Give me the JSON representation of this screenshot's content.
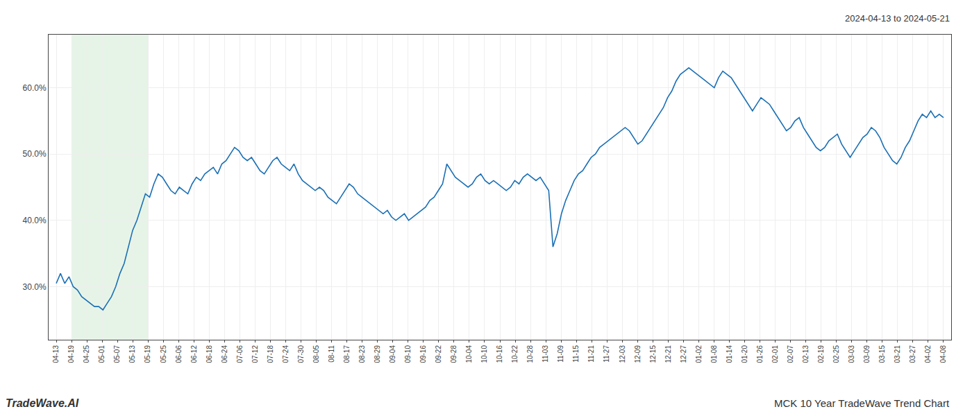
{
  "chart_data": {
    "type": "line",
    "title": "MCK 10 Year TradeWave Trend Chart",
    "subtitle": "2024-04-13 to 2024-05-21",
    "annotations": [
      "TradeWave.AI"
    ],
    "color": "#1a6fb5",
    "grid": true,
    "highlight": {
      "x": [
        1,
        6
      ],
      "color": "#c8e6c9"
    },
    "xlim": [
      -0.5,
      58.5
    ],
    "xticks": [
      {
        "value": 0,
        "label": "04-13"
      },
      {
        "value": 1,
        "label": "04-19"
      },
      {
        "value": 2,
        "label": "04-25"
      },
      {
        "value": 3,
        "label": "05-01"
      },
      {
        "value": 4,
        "label": "05-07"
      },
      {
        "value": 5,
        "label": "05-13"
      },
      {
        "value": 6,
        "label": "05-19"
      },
      {
        "value": 7,
        "label": "05-25"
      },
      {
        "value": 8,
        "label": "06-06"
      },
      {
        "value": 9,
        "label": "06-12"
      },
      {
        "value": 10,
        "label": "06-18"
      },
      {
        "value": 11,
        "label": "06-24"
      },
      {
        "value": 12,
        "label": "07-06"
      },
      {
        "value": 13,
        "label": "07-12"
      },
      {
        "value": 14,
        "label": "07-18"
      },
      {
        "value": 15,
        "label": "07-24"
      },
      {
        "value": 16,
        "label": "07-30"
      },
      {
        "value": 17,
        "label": "08-05"
      },
      {
        "value": 18,
        "label": "08-11"
      },
      {
        "value": 19,
        "label": "08-17"
      },
      {
        "value": 20,
        "label": "08-23"
      },
      {
        "value": 21,
        "label": "08-29"
      },
      {
        "value": 22,
        "label": "09-04"
      },
      {
        "value": 23,
        "label": "09-10"
      },
      {
        "value": 24,
        "label": "09-16"
      },
      {
        "value": 25,
        "label": "09-22"
      },
      {
        "value": 26,
        "label": "09-28"
      },
      {
        "value": 27,
        "label": "10-04"
      },
      {
        "value": 28,
        "label": "10-10"
      },
      {
        "value": 29,
        "label": "10-16"
      },
      {
        "value": 30,
        "label": "10-22"
      },
      {
        "value": 31,
        "label": "10-28"
      },
      {
        "value": 32,
        "label": "11-03"
      },
      {
        "value": 33,
        "label": "11-09"
      },
      {
        "value": 34,
        "label": "11-15"
      },
      {
        "value": 35,
        "label": "11-21"
      },
      {
        "value": 36,
        "label": "11-27"
      },
      {
        "value": 37,
        "label": "12-03"
      },
      {
        "value": 38,
        "label": "12-09"
      },
      {
        "value": 39,
        "label": "12-15"
      },
      {
        "value": 40,
        "label": "12-21"
      },
      {
        "value": 41,
        "label": "12-27"
      },
      {
        "value": 42,
        "label": "01-02"
      },
      {
        "value": 43,
        "label": "01-08"
      },
      {
        "value": 44,
        "label": "01-14"
      },
      {
        "value": 45,
        "label": "01-20"
      },
      {
        "value": 46,
        "label": "01-26"
      },
      {
        "value": 47,
        "label": "02-01"
      },
      {
        "value": 48,
        "label": "02-07"
      },
      {
        "value": 49,
        "label": "02-13"
      },
      {
        "value": 50,
        "label": "02-19"
      },
      {
        "value": 51,
        "label": "02-25"
      },
      {
        "value": 52,
        "label": "03-03"
      },
      {
        "value": 53,
        "label": "03-09"
      },
      {
        "value": 54,
        "label": "03-15"
      },
      {
        "value": 55,
        "label": "03-21"
      },
      {
        "value": 56,
        "label": "03-27"
      },
      {
        "value": 57,
        "label": "04-02"
      },
      {
        "value": 58,
        "label": "04-08"
      }
    ],
    "ylim": [
      22,
      68
    ],
    "yticks": [
      {
        "value": 30,
        "label": "30.0%"
      },
      {
        "value": 40,
        "label": "40.0%"
      },
      {
        "value": 50,
        "label": "50.0%"
      },
      {
        "value": 60,
        "label": "60.0%"
      }
    ],
    "x": [
      0,
      0.2775,
      0.555,
      0.8325,
      1.11,
      1.3876,
      1.6651,
      1.9426,
      2.2201,
      2.4976,
      2.7751,
      3.0526,
      3.3301,
      3.6077,
      3.8852,
      4.1627,
      4.4402,
      4.7177,
      4.9952,
      5.2727,
      5.5502,
      5.8278,
      6.1053,
      6.3828,
      6.6603,
      6.9378,
      7.2153,
      7.4928,
      7.7703,
      8.0478,
      8.3254,
      8.6029,
      8.8804,
      9.1579,
      9.4354,
      9.7129,
      9.9904,
      10.2679,
      10.5455,
      10.823,
      11.1005,
      11.378,
      11.6555,
      11.933,
      12.2105,
      12.488,
      12.7656,
      13.0431,
      13.3206,
      13.5981,
      13.8756,
      14.1531,
      14.4306,
      14.7081,
      14.9856,
      15.2632,
      15.5407,
      15.8182,
      16.0957,
      16.3732,
      16.6507,
      16.9282,
      17.2057,
      17.4833,
      17.7608,
      18.0383,
      18.3158,
      18.5933,
      18.8708,
      19.1483,
      19.4258,
      19.7033,
      19.9809,
      20.2584,
      20.5359,
      20.8134,
      21.0909,
      21.3684,
      21.6459,
      21.9234,
      22.201,
      22.4785,
      22.756,
      23.0335,
      23.311,
      23.5885,
      23.866,
      24.1435,
      24.4211,
      24.6986,
      24.9761,
      25.2536,
      25.5311,
      25.8086,
      26.0861,
      26.3636,
      26.6411,
      26.9187,
      27.1962,
      27.4737,
      27.7512,
      28.0287,
      28.3062,
      28.5837,
      28.8612,
      29.1388,
      29.4163,
      29.6938,
      29.9713,
      30.2488,
      30.5263,
      30.8038,
      31.0813,
      31.3589,
      31.6364,
      31.9139,
      32.1914,
      32.4689,
      32.7464,
      33.0239,
      33.3014,
      33.5789,
      33.8565,
      34.134,
      34.4115,
      34.689,
      34.9665,
      35.244,
      35.5215,
      35.799,
      36.0766,
      36.3541,
      36.6316,
      36.9091,
      37.1866,
      37.4641,
      37.7416,
      38.0191,
      38.2967,
      38.5742,
      38.8517,
      39.1292,
      39.4067,
      39.6842,
      39.9617,
      40.2392,
      40.5167,
      40.7943,
      41.0718,
      41.3493,
      41.6268,
      41.9043,
      42.1818,
      42.4593,
      42.7368,
      43.0144,
      43.2919,
      43.5694,
      43.8469,
      44.1244,
      44.4019,
      44.6794,
      44.9569,
      45.2344,
      45.512,
      45.7895,
      46.067,
      46.3445,
      46.622,
      46.8995,
      47.177,
      47.4545,
      47.7321,
      48.0096,
      48.2871,
      48.5646,
      48.8421,
      49.1196,
      49.3971,
      49.6746,
      49.9522,
      50.2297,
      50.5072,
      50.7847,
      51.0622,
      51.3397,
      51.6172,
      51.8947,
      52.1722,
      52.4498,
      52.7273,
      53.0048,
      53.2823,
      53.5598,
      53.8373,
      54.1148,
      54.3923,
      54.6699,
      54.9474,
      55.2249,
      55.5024,
      55.7799,
      56.0574,
      56.3349,
      56.6124,
      56.89,
      57.1675,
      57.445,
      57.7225,
      58
    ],
    "values": [
      30.5,
      32.0,
      30.5,
      31.5,
      30.0,
      29.5,
      28.5,
      28.0,
      27.5,
      27.0,
      27.0,
      26.5,
      27.5,
      28.5,
      30.0,
      32.0,
      33.5,
      36.0,
      38.5,
      40.0,
      42.0,
      44.0,
      43.5,
      45.5,
      47.0,
      46.5,
      45.5,
      44.5,
      44.0,
      45.0,
      44.5,
      44.0,
      45.5,
      46.5,
      46.0,
      47.0,
      47.5,
      48.0,
      47.0,
      48.5,
      49.0,
      50.0,
      51.0,
      50.5,
      49.5,
      49.0,
      49.5,
      48.5,
      47.5,
      47.0,
      48.0,
      49.0,
      49.5,
      48.5,
      48.0,
      47.5,
      48.5,
      47.0,
      46.0,
      45.5,
      45.0,
      44.5,
      45.0,
      44.5,
      43.5,
      43.0,
      42.5,
      43.5,
      44.5,
      45.5,
      45.0,
      44.0,
      43.5,
      43.0,
      42.5,
      42.0,
      41.5,
      41.0,
      41.5,
      40.5,
      40.0,
      40.5,
      41.0,
      40.0,
      40.5,
      41.0,
      41.5,
      42.0,
      43.0,
      43.5,
      44.5,
      45.5,
      48.5,
      47.5,
      46.5,
      46.0,
      45.5,
      45.0,
      45.5,
      46.5,
      47.0,
      46.0,
      45.5,
      46.0,
      45.5,
      45.0,
      44.5,
      45.0,
      46.0,
      45.5,
      46.5,
      47.0,
      46.5,
      46.0,
      46.5,
      45.5,
      44.5,
      36.0,
      38.0,
      41.0,
      43.0,
      44.5,
      46.0,
      47.0,
      47.5,
      48.5,
      49.5,
      50.0,
      51.0,
      51.5,
      52.0,
      52.5,
      53.0,
      53.5,
      54.0,
      53.5,
      52.5,
      51.5,
      52.0,
      53.0,
      54.0,
      55.0,
      56.0,
      57.0,
      58.5,
      59.5,
      61.0,
      62.0,
      62.5,
      63.0,
      62.5,
      62.0,
      61.5,
      61.0,
      60.5,
      60.0,
      61.5,
      62.5,
      62.0,
      61.5,
      60.5,
      59.5,
      58.5,
      57.5,
      56.5,
      57.5,
      58.5,
      58.0,
      57.5,
      56.5,
      55.5,
      54.5,
      53.5,
      54.0,
      55.0,
      55.5,
      54.0,
      53.0,
      52.0,
      51.0,
      50.5,
      51.0,
      52.0,
      52.5,
      53.0,
      51.5,
      50.5,
      49.5,
      50.5,
      51.5,
      52.5,
      53.0,
      54.0,
      53.5,
      52.5,
      51.0,
      50.0,
      49.0,
      48.5,
      49.5,
      51.0,
      52.0,
      53.5,
      55.0,
      56.0,
      55.5,
      56.5,
      55.5,
      56.0,
      55.5
    ]
  }
}
